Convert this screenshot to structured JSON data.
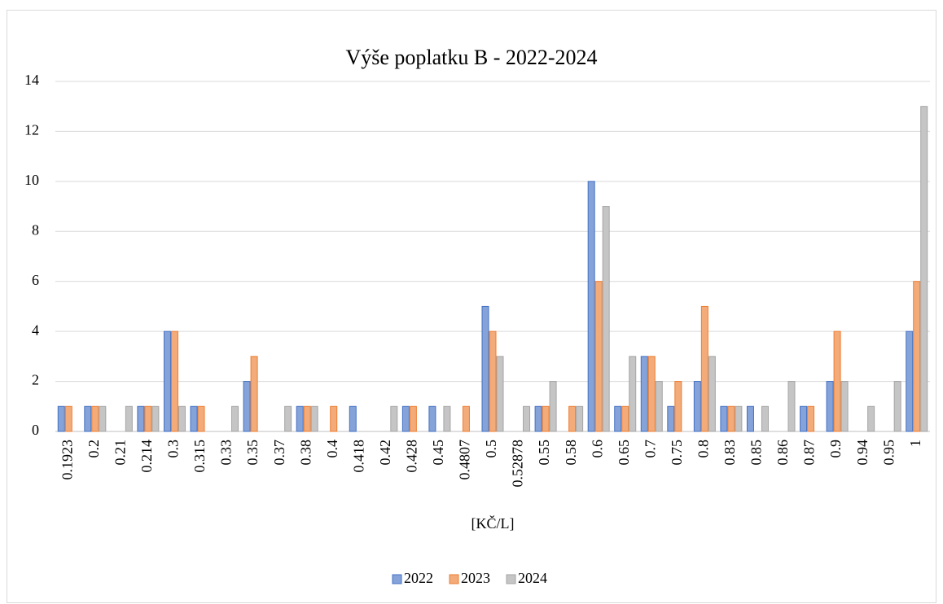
{
  "chart_data": {
    "type": "bar",
    "title": "Výše poplatku B - 2022-2024",
    "x_label": "[KČ/L]",
    "categories": [
      "0.1923",
      "0.2",
      "0.21",
      "0.214",
      "0.3",
      "0.315",
      "0.33",
      "0.35",
      "0.37",
      "0.38",
      "0.4",
      "0.418",
      "0.42",
      "0.428",
      "0.45",
      "0.4807",
      "0.5",
      "0.52878",
      "0.55",
      "0.58",
      "0.6",
      "0.65",
      "0.7",
      "0.75",
      "0.8",
      "0.83",
      "0.85",
      "0.86",
      "0.87",
      "0.9",
      "0.94",
      "0.95",
      "1"
    ],
    "series": [
      {
        "name": "2022",
        "color": "#4472c4",
        "values": [
          1,
          1,
          0,
          1,
          4,
          1,
          0,
          2,
          0,
          1,
          0,
          1,
          0,
          1,
          1,
          0,
          5,
          0,
          1,
          0,
          10,
          1,
          3,
          1,
          2,
          1,
          1,
          0,
          1,
          2,
          0,
          0,
          4
        ]
      },
      {
        "name": "2023",
        "color": "#ed7d31",
        "values": [
          1,
          1,
          0,
          1,
          4,
          1,
          0,
          3,
          0,
          1,
          1,
          0,
          0,
          1,
          0,
          1,
          4,
          0,
          1,
          1,
          6,
          1,
          3,
          2,
          5,
          1,
          0,
          0,
          1,
          4,
          0,
          0,
          6
        ]
      },
      {
        "name": "2024",
        "color": "#a5a5a5",
        "values": [
          0,
          1,
          1,
          1,
          1,
          0,
          1,
          0,
          1,
          1,
          0,
          0,
          1,
          0,
          1,
          0,
          3,
          1,
          2,
          1,
          9,
          3,
          2,
          0,
          3,
          1,
          1,
          2,
          0,
          2,
          1,
          2,
          13
        ]
      }
    ],
    "ylim": [
      0,
      14
    ],
    "yticks": [
      0,
      2,
      4,
      6,
      8,
      10,
      12,
      14
    ],
    "grid": true,
    "legend": "bottom"
  }
}
